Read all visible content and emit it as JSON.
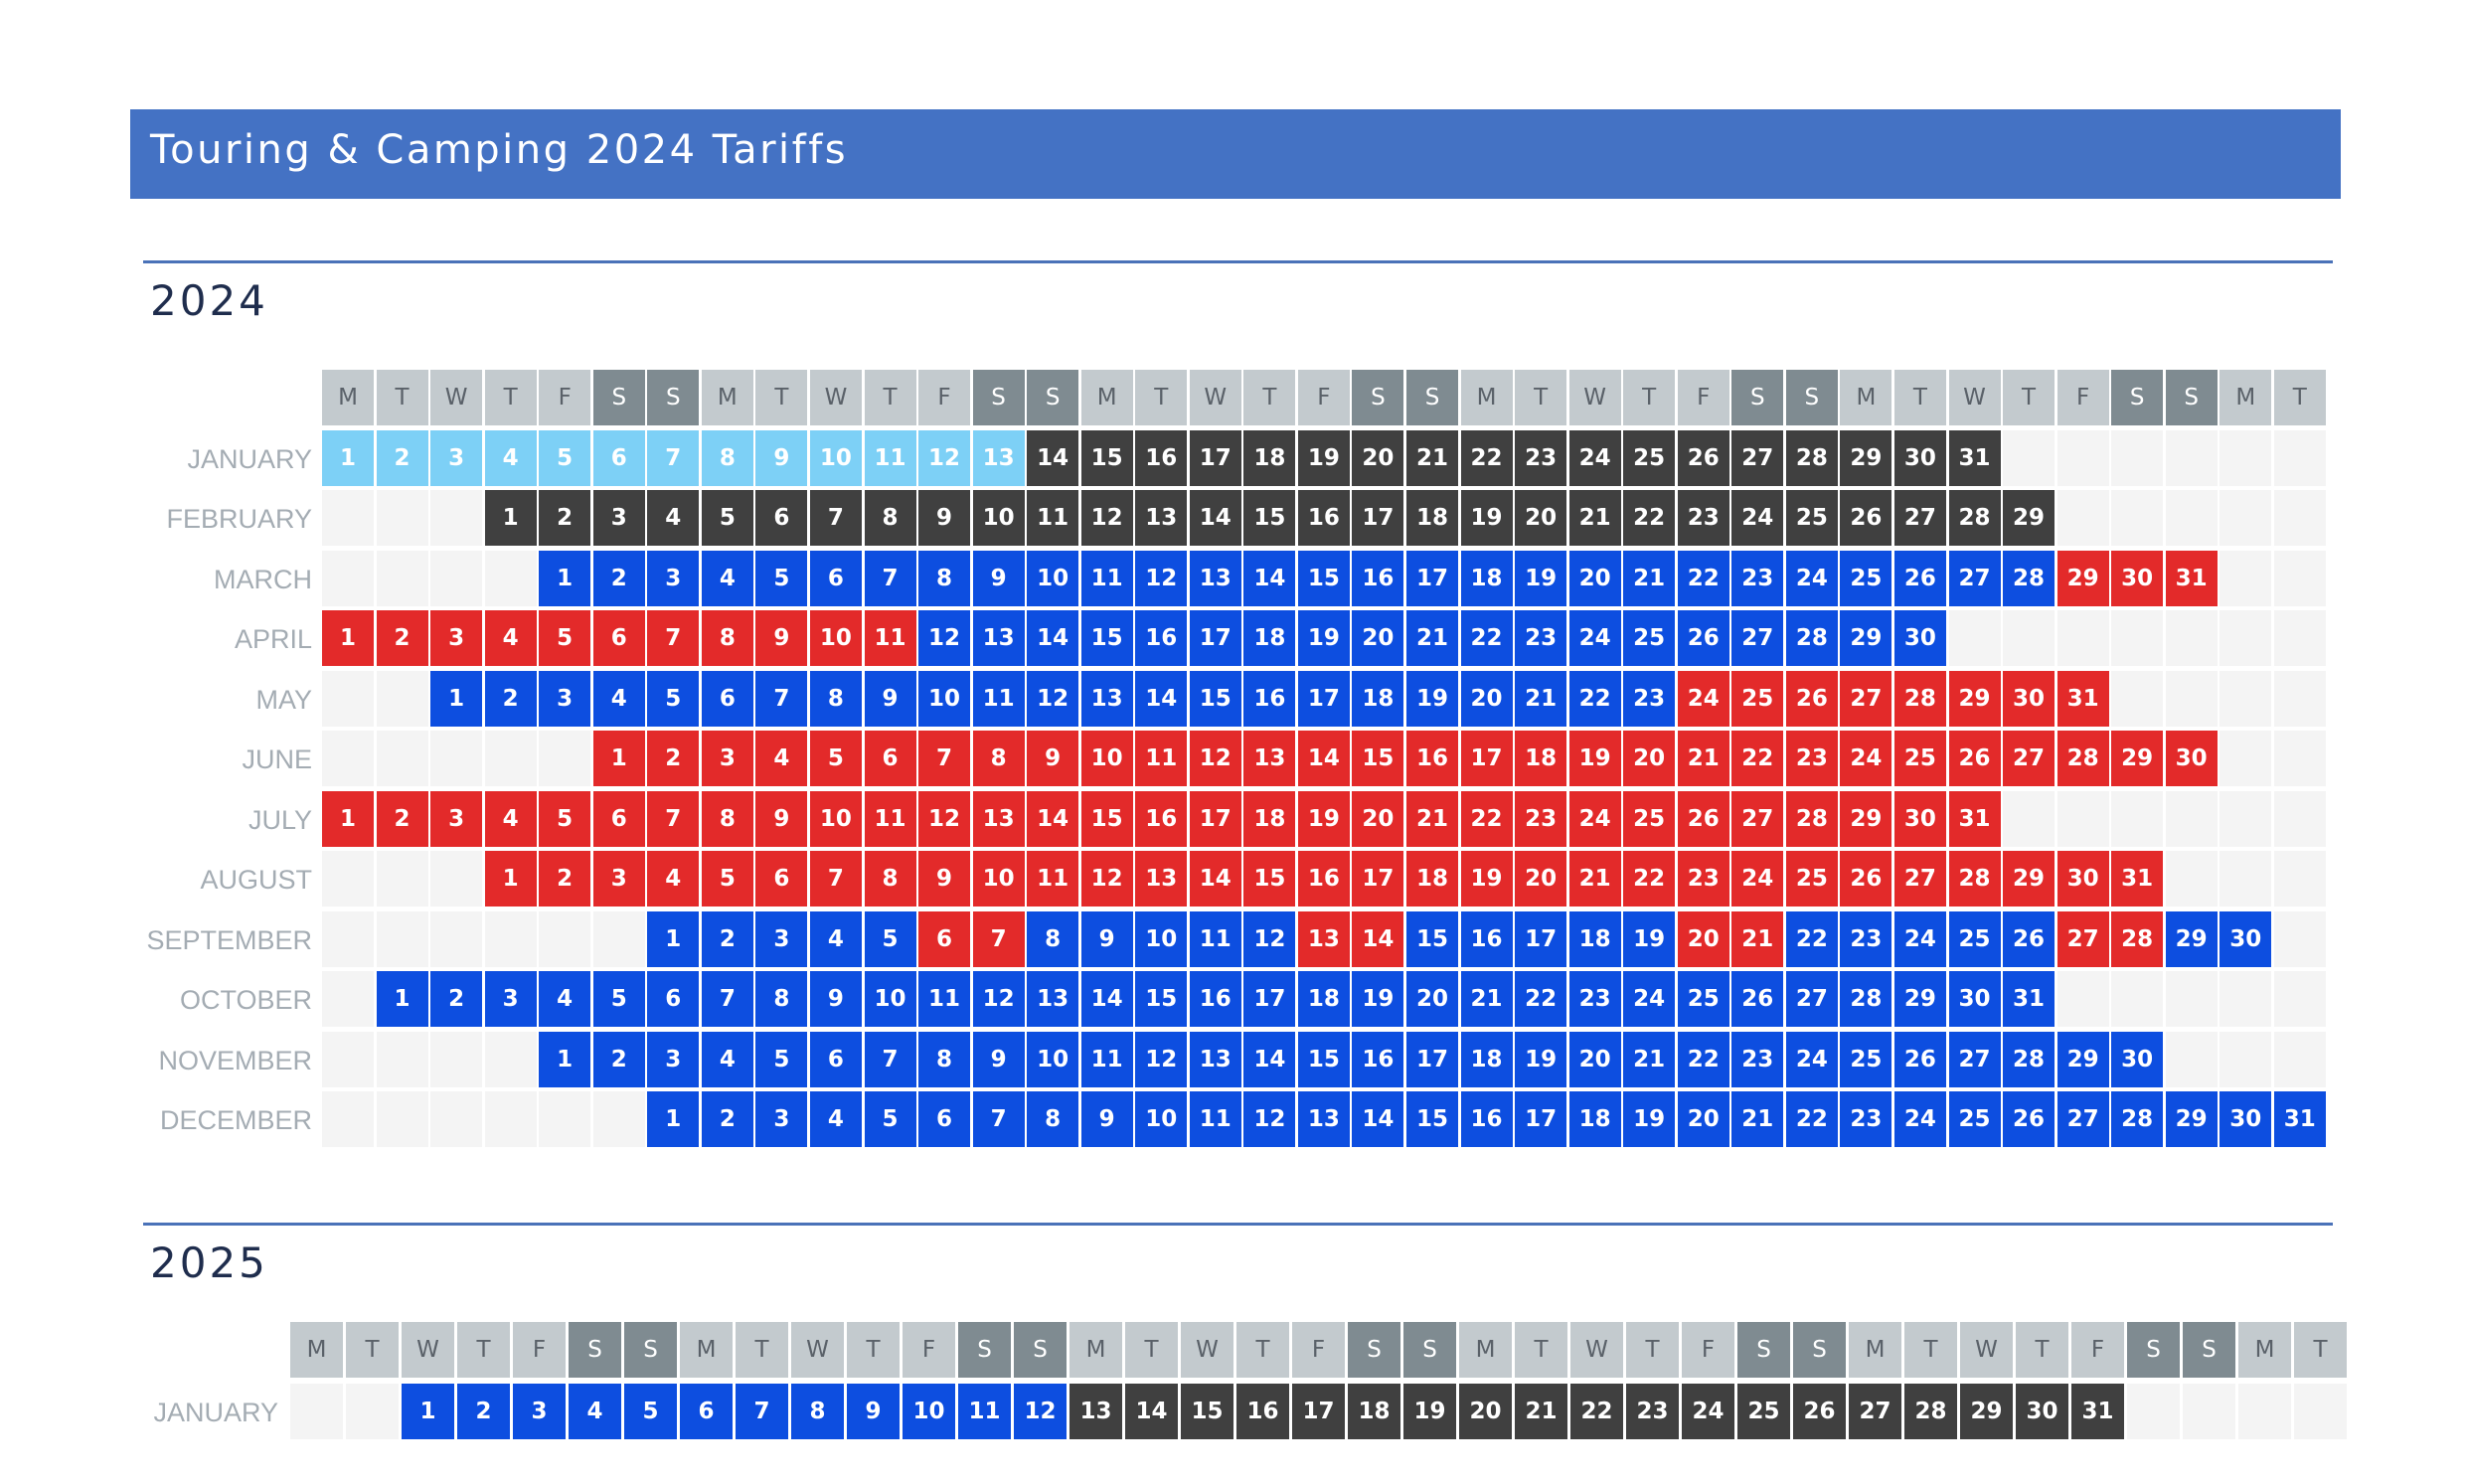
{
  "banner": {
    "title": "Touring & Camping 2024 Tariffs"
  },
  "colors": {
    "banner": "#4472c4",
    "light_blue": "#7dd0f6",
    "dark": "#404040",
    "blue": "#0d4ee0",
    "red": "#e32a2a",
    "weekday_header": "#c3cace",
    "weekend_header": "#7f8b91",
    "empty_cell": "#f4f4f4"
  },
  "weekday_headers": [
    "M",
    "T",
    "W",
    "T",
    "F",
    "S",
    "S",
    "M",
    "T",
    "W",
    "T",
    "F",
    "S",
    "S",
    "M",
    "T",
    "W",
    "T",
    "F",
    "S",
    "S",
    "M",
    "T",
    "W",
    "T",
    "F",
    "S",
    "S",
    "M",
    "T",
    "W",
    "T",
    "F",
    "S",
    "S",
    "M",
    "T"
  ],
  "calendars": [
    {
      "year": "2024",
      "months": [
        {
          "name": "JANUARY",
          "offset": 0,
          "days": 31,
          "colors": [
            [
              1,
              13,
              "lightblue"
            ],
            [
              14,
              31,
              "dark"
            ]
          ]
        },
        {
          "name": "FEBRUARY",
          "offset": 3,
          "days": 29,
          "colors": [
            [
              1,
              29,
              "dark"
            ]
          ]
        },
        {
          "name": "MARCH",
          "offset": 4,
          "days": 31,
          "colors": [
            [
              1,
              28,
              "blue"
            ],
            [
              29,
              31,
              "red"
            ]
          ]
        },
        {
          "name": "APRIL",
          "offset": 0,
          "days": 30,
          "colors": [
            [
              1,
              11,
              "red"
            ],
            [
              12,
              30,
              "blue"
            ]
          ]
        },
        {
          "name": "MAY",
          "offset": 2,
          "days": 31,
          "colors": [
            [
              1,
              23,
              "blue"
            ],
            [
              24,
              31,
              "red"
            ]
          ]
        },
        {
          "name": "JUNE",
          "offset": 5,
          "days": 30,
          "colors": [
            [
              1,
              30,
              "red"
            ]
          ]
        },
        {
          "name": "JULY",
          "offset": 0,
          "days": 31,
          "colors": [
            [
              1,
              31,
              "red"
            ]
          ]
        },
        {
          "name": "AUGUST",
          "offset": 3,
          "days": 31,
          "colors": [
            [
              1,
              31,
              "red"
            ]
          ]
        },
        {
          "name": "SEPTEMBER",
          "offset": 6,
          "days": 30,
          "colors": [
            [
              1,
              5,
              "blue"
            ],
            [
              6,
              7,
              "red"
            ],
            [
              8,
              12,
              "blue"
            ],
            [
              13,
              14,
              "red"
            ],
            [
              15,
              19,
              "blue"
            ],
            [
              20,
              21,
              "red"
            ],
            [
              22,
              26,
              "blue"
            ],
            [
              27,
              28,
              "red"
            ],
            [
              29,
              30,
              "blue"
            ]
          ]
        },
        {
          "name": "OCTOBER",
          "offset": 1,
          "days": 31,
          "colors": [
            [
              1,
              31,
              "blue"
            ]
          ]
        },
        {
          "name": "NOVEMBER",
          "offset": 4,
          "days": 30,
          "colors": [
            [
              1,
              30,
              "blue"
            ]
          ]
        },
        {
          "name": "DECEMBER",
          "offset": 6,
          "days": 31,
          "colors": [
            [
              1,
              31,
              "blue"
            ]
          ]
        }
      ]
    },
    {
      "year": "2025",
      "months": [
        {
          "name": "JANUARY",
          "offset": 2,
          "days": 31,
          "colors": [
            [
              1,
              12,
              "blue"
            ],
            [
              13,
              31,
              "dark"
            ]
          ]
        }
      ]
    }
  ]
}
